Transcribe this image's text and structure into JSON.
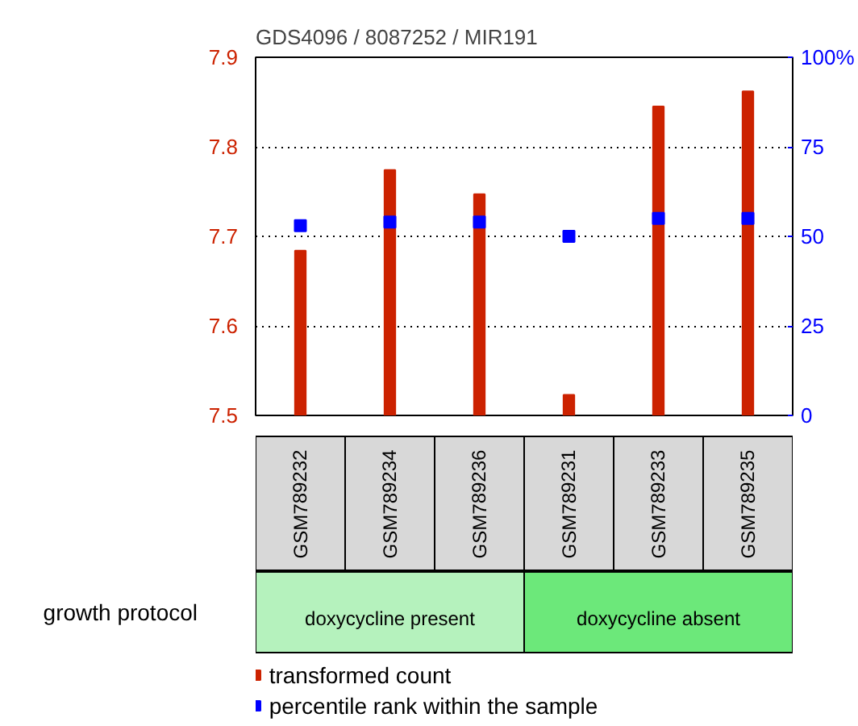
{
  "chart_data": {
    "type": "bar",
    "title": "GDS4096 / 8087252 / MIR191",
    "categories": [
      "GSM789232",
      "GSM789234",
      "GSM789236",
      "GSM789231",
      "GSM789233",
      "GSM789235"
    ],
    "series": [
      {
        "name": "transformed count",
        "color": "#cc2200",
        "values": [
          7.684,
          7.774,
          7.747,
          7.523,
          7.845,
          7.862
        ]
      },
      {
        "name": "percentile rank within the sample",
        "type": "scatter",
        "axis": "y2",
        "marker": "square",
        "color": "#0000ff",
        "values": [
          53,
          54,
          54,
          50,
          55,
          55
        ]
      }
    ],
    "ylim": [
      7.5,
      7.9
    ],
    "yticks": [
      7.5,
      7.6,
      7.7,
      7.8,
      7.9
    ],
    "y2lim": [
      0,
      100
    ],
    "y2ticks": [
      0,
      25,
      50,
      75,
      {
        "value": 100,
        "label": "100%"
      }
    ],
    "grid": "y",
    "legend": "bottom",
    "annotations": [
      "growth protocol",
      "doxycycline present",
      "doxycycline absent"
    ]
  }
}
